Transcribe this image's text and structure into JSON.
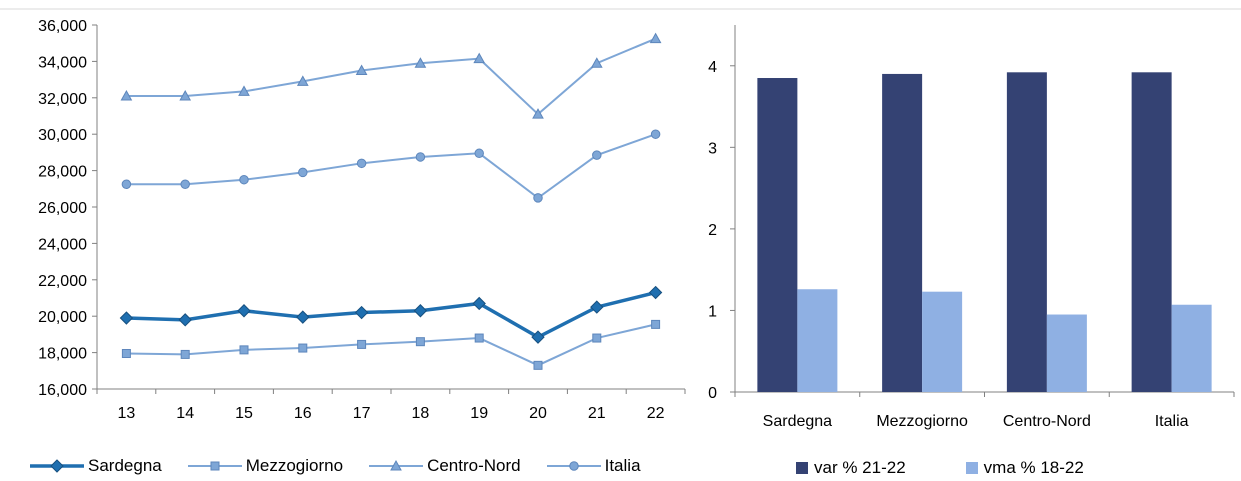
{
  "chart_data": [
    {
      "type": "line",
      "title": "",
      "xlabel": "",
      "ylabel": "",
      "x": [
        "13",
        "14",
        "15",
        "16",
        "17",
        "18",
        "19",
        "20",
        "21",
        "22"
      ],
      "ylim": [
        16000,
        36000
      ],
      "yticks": [
        "16,000",
        "18,000",
        "20,000",
        "22,000",
        "24,000",
        "26,000",
        "28,000",
        "30,000",
        "32,000",
        "34,000",
        "36,000"
      ],
      "grid": false,
      "legend_position": "bottom",
      "series": [
        {
          "name": "Sardegna",
          "marker": "diamond",
          "color": "#1f6fb0",
          "bold": true,
          "values": [
            19900,
            19800,
            20300,
            19950,
            20200,
            20300,
            20700,
            18850,
            20500,
            21300
          ]
        },
        {
          "name": "Mezzogiorno",
          "marker": "square",
          "color": "#7ea6d6",
          "bold": false,
          "values": [
            17950,
            17900,
            18150,
            18250,
            18450,
            18600,
            18800,
            17300,
            18800,
            19550
          ]
        },
        {
          "name": "Centro-Nord",
          "marker": "triangle",
          "color": "#7ea6d6",
          "bold": false,
          "values": [
            32100,
            32100,
            32350,
            32900,
            33500,
            33900,
            34150,
            31100,
            33900,
            35250
          ]
        },
        {
          "name": "Italia",
          "marker": "circle",
          "color": "#7ea6d6",
          "bold": false,
          "values": [
            27250,
            27250,
            27500,
            27900,
            28400,
            28750,
            28950,
            26500,
            28850,
            30000
          ]
        }
      ]
    },
    {
      "type": "bar",
      "title": "",
      "xlabel": "",
      "ylabel": "",
      "categories": [
        "Sardegna",
        "Mezzogiorno",
        "Centro-Nord",
        "Italia"
      ],
      "ylim": [
        0,
        4.5
      ],
      "yticks": [
        "0",
        "1",
        "2",
        "3",
        "4"
      ],
      "grid": false,
      "legend_position": "bottom",
      "series": [
        {
          "name": "var % 21-22",
          "color": "#344273",
          "values": [
            3.85,
            3.9,
            3.92,
            3.92
          ]
        },
        {
          "name": "vma % 18-22",
          "color": "#8fb0e3",
          "values": [
            1.26,
            1.23,
            0.95,
            1.07
          ]
        }
      ]
    }
  ]
}
